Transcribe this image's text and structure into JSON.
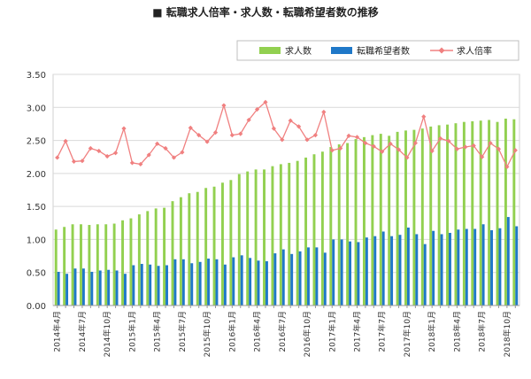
{
  "chart_data": {
    "type": "bar+line",
    "title": "■ 転職求人倍率・求人数・転職希望者数の推移",
    "legend_position": "top-right",
    "ylim": [
      0,
      3.5
    ],
    "yticks": [
      "0.00",
      "0.50",
      "1.00",
      "1.50",
      "2.00",
      "2.50",
      "3.00",
      "3.50"
    ],
    "grid": true,
    "x": [
      "2014年4月",
      "2014年5月",
      "2014年6月",
      "2014年7月",
      "2014年8月",
      "2014年9月",
      "2014年10月",
      "2014年11月",
      "2014年12月",
      "2015年1月",
      "2015年2月",
      "2015年3月",
      "2015年4月",
      "2015年5月",
      "2015年6月",
      "2015年7月",
      "2015年8月",
      "2015年9月",
      "2015年10月",
      "2015年11月",
      "2015年12月",
      "2016年1月",
      "2016年2月",
      "2016年3月",
      "2016年4月",
      "2016年5月",
      "2016年6月",
      "2016年7月",
      "2016年8月",
      "2016年9月",
      "2016年10月",
      "2016年11月",
      "2016年12月",
      "2017年1月",
      "2017年2月",
      "2017年3月",
      "2017年4月",
      "2017年5月",
      "2017年6月",
      "2017年7月",
      "2017年8月",
      "2017年9月",
      "2017年10月",
      "2017年11月",
      "2017年12月",
      "2018年1月",
      "2018年2月",
      "2018年3月",
      "2018年4月",
      "2018年5月",
      "2018年6月",
      "2018年7月",
      "2018年8月",
      "2018年9月",
      "2018年10月",
      "2018年11月"
    ],
    "x_tick_labels": [
      "2014年4月",
      "2014年7月",
      "2014年10月",
      "2015年1月",
      "2015年4月",
      "2015年7月",
      "2015年10月",
      "2016年1月",
      "2016年4月",
      "2016年7月",
      "2016年10月",
      "2017年1月",
      "2017年4月",
      "2017年7月",
      "2017年10月",
      "2018年1月",
      "2018年4月",
      "2018年7月",
      "2018年10月"
    ],
    "series": [
      {
        "name": "求人数",
        "kind": "bar",
        "color": "#92d050",
        "values": [
          1.15,
          1.19,
          1.23,
          1.23,
          1.22,
          1.23,
          1.23,
          1.24,
          1.29,
          1.32,
          1.38,
          1.43,
          1.47,
          1.48,
          1.58,
          1.64,
          1.7,
          1.72,
          1.78,
          1.8,
          1.86,
          1.9,
          1.99,
          2.03,
          2.06,
          2.06,
          2.11,
          2.14,
          2.16,
          2.19,
          2.24,
          2.29,
          2.33,
          2.4,
          2.44,
          2.46,
          2.52,
          2.55,
          2.58,
          2.6,
          2.57,
          2.63,
          2.65,
          2.66,
          2.68,
          2.71,
          2.73,
          2.74,
          2.76,
          2.78,
          2.79,
          2.8,
          2.81,
          2.78,
          2.83,
          2.82
        ]
      },
      {
        "name": "転職希望者数",
        "kind": "bar",
        "color": "#1f78c8",
        "values": [
          0.51,
          0.48,
          0.56,
          0.56,
          0.51,
          0.53,
          0.54,
          0.53,
          0.48,
          0.61,
          0.63,
          0.62,
          0.6,
          0.61,
          0.7,
          0.7,
          0.64,
          0.66,
          0.71,
          0.7,
          0.62,
          0.73,
          0.76,
          0.72,
          0.68,
          0.67,
          0.79,
          0.85,
          0.78,
          0.82,
          0.88,
          0.88,
          0.8,
          1.0,
          1.0,
          0.97,
          0.96,
          1.03,
          1.05,
          1.12,
          1.05,
          1.07,
          1.18,
          1.08,
          0.93,
          1.13,
          1.08,
          1.1,
          1.15,
          1.16,
          1.16,
          1.23,
          1.14,
          1.17,
          1.34,
          1.2
        ]
      },
      {
        "name": "求人倍率",
        "kind": "line",
        "color": "#f08080",
        "values": [
          2.24,
          2.49,
          2.18,
          2.19,
          2.38,
          2.34,
          2.26,
          2.31,
          2.68,
          2.16,
          2.14,
          2.28,
          2.45,
          2.38,
          2.24,
          2.32,
          2.69,
          2.58,
          2.48,
          2.62,
          3.03,
          2.58,
          2.6,
          2.81,
          2.97,
          3.08,
          2.68,
          2.51,
          2.8,
          2.71,
          2.51,
          2.58,
          2.93,
          2.35,
          2.38,
          2.57,
          2.55,
          2.46,
          2.41,
          2.33,
          2.45,
          2.36,
          2.24,
          2.46,
          2.86,
          2.34,
          2.53,
          2.49,
          2.37,
          2.4,
          2.42,
          2.25,
          2.46,
          2.37,
          2.1,
          2.35
        ]
      }
    ]
  }
}
